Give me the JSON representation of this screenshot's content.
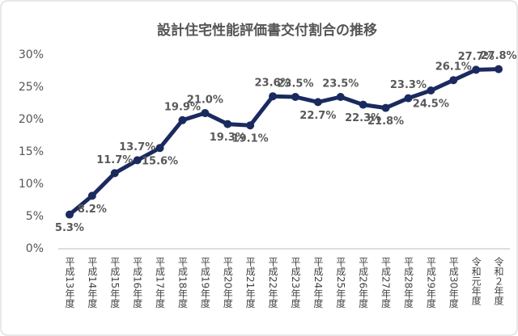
{
  "chart_data": {
    "type": "line",
    "title": "設計住宅性能評価書交付割合の推移",
    "categories": [
      "平成13年度",
      "平成14年度",
      "平成15年度",
      "平成16年度",
      "平成17年度",
      "平成18年度",
      "平成19年度",
      "平成20年度",
      "平成21年度",
      "平成22年度",
      "平成23年度",
      "平成24年度",
      "平成25年度",
      "平成26年度",
      "平成27年度",
      "平成28年度",
      "平成29年度",
      "平成30年度",
      "令和元年度",
      "令和２年度"
    ],
    "values": [
      5.3,
      8.2,
      11.7,
      13.7,
      15.6,
      19.9,
      21.0,
      19.3,
      19.1,
      23.6,
      23.5,
      22.7,
      23.5,
      22.3,
      21.8,
      23.3,
      24.5,
      26.1,
      27.7,
      27.8
    ],
    "value_labels": [
      "5.3%",
      "8.2%",
      "11.7%",
      "13.7%",
      "15.6%",
      "19.9%",
      "21.0%",
      "19.3%",
      "19.1%",
      "23.6%",
      "23.5%",
      "22.7%",
      "23.5%",
      "22.3%",
      "21.8%",
      "23.3%",
      "24.5%",
      "26.1%",
      "27.7%",
      "27.8%"
    ],
    "color": "#1b2a5e",
    "ylim": [
      0,
      30
    ],
    "yticks": [
      {
        "value": 0,
        "label": "0%"
      },
      {
        "value": 5,
        "label": "5%"
      },
      {
        "value": 10,
        "label": "10%"
      },
      {
        "value": 15,
        "label": "15%"
      },
      {
        "value": 20,
        "label": "20%"
      },
      {
        "value": 25,
        "label": "25%"
      },
      {
        "value": 30,
        "label": "30%"
      }
    ],
    "grid": false
  }
}
